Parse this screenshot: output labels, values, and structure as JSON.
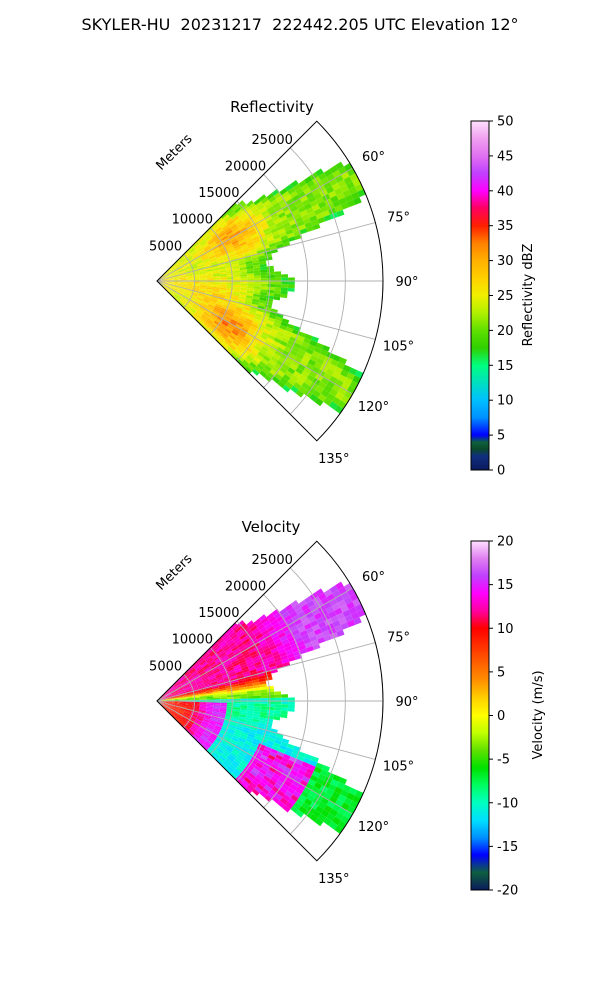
{
  "suptitle": "SKYLER-HU  20231217  222442.205 UTC Elevation 12°",
  "chart_data": [
    {
      "type": "heatmap",
      "title": "Reflectivity",
      "field": "reflectivity",
      "radial_axis_label": "Meters",
      "radial_ticks": [
        "5000",
        "10000",
        "15000",
        "20000",
        "25000"
      ],
      "azimuth_ticks": [
        "60°",
        "75°",
        "90°",
        "105°",
        "120°",
        "135°"
      ],
      "colorbar": {
        "label": "Reflectivity dBZ",
        "range": [
          0,
          50
        ],
        "ticks": [
          "0",
          "5",
          "10",
          "15",
          "20",
          "25",
          "30",
          "35",
          "40",
          "45",
          "50"
        ],
        "stops": [
          [
            0,
            "#0a1a5c"
          ],
          [
            2,
            "#102f80"
          ],
          [
            3,
            "#0a4a2a"
          ],
          [
            4,
            "#0f6040"
          ],
          [
            5,
            "#0000ff"
          ],
          [
            7.5,
            "#0090ff"
          ],
          [
            10,
            "#00c0ff"
          ],
          [
            12.5,
            "#00e0c0"
          ],
          [
            15,
            "#00ff80"
          ],
          [
            17.5,
            "#30d000"
          ],
          [
            20,
            "#60e000"
          ],
          [
            22.5,
            "#b0f000"
          ],
          [
            25,
            "#f0f000"
          ],
          [
            27.5,
            "#ffd000"
          ],
          [
            30,
            "#ffb000"
          ],
          [
            32.5,
            "#ff8000"
          ],
          [
            35,
            "#ff2000"
          ],
          [
            37.5,
            "#ff0060"
          ],
          [
            40,
            "#ff00ff"
          ],
          [
            42.5,
            "#c040ff"
          ],
          [
            45,
            "#e070f0"
          ],
          [
            47.5,
            "#f0a0f0"
          ],
          [
            50,
            "#ffe0ff"
          ]
        ]
      }
    },
    {
      "type": "heatmap",
      "title": "Velocity",
      "field": "velocity",
      "radial_axis_label": "Meters",
      "radial_ticks": [
        "5000",
        "10000",
        "15000",
        "20000",
        "25000"
      ],
      "azimuth_ticks": [
        "60°",
        "75°",
        "90°",
        "105°",
        "120°",
        "135°"
      ],
      "colorbar": {
        "label": "Velocity (m/s)",
        "range": [
          -20,
          20
        ],
        "ticks": [
          "-20",
          "-15",
          "-10",
          "-5",
          "0",
          "5",
          "10",
          "15",
          "20"
        ],
        "stops": [
          [
            -20,
            "#0a1a5c"
          ],
          [
            -18,
            "#0f6040"
          ],
          [
            -16,
            "#0000ff"
          ],
          [
            -14,
            "#0090ff"
          ],
          [
            -12,
            "#00e0ff"
          ],
          [
            -10,
            "#00ffc0"
          ],
          [
            -8,
            "#00ff60"
          ],
          [
            -6,
            "#00e000"
          ],
          [
            -4,
            "#60e000"
          ],
          [
            -2,
            "#c0ff00"
          ],
          [
            0,
            "#ffff00"
          ],
          [
            2,
            "#ffd000"
          ],
          [
            4,
            "#ff9000"
          ],
          [
            6,
            "#ff6000"
          ],
          [
            8,
            "#ff3000"
          ],
          [
            10,
            "#ff0000"
          ],
          [
            12,
            "#ff00a0"
          ],
          [
            14,
            "#ff00ff"
          ],
          [
            16,
            "#c040ff"
          ],
          [
            18,
            "#e080f0"
          ],
          [
            20,
            "#ffe0ff"
          ]
        ]
      }
    }
  ]
}
